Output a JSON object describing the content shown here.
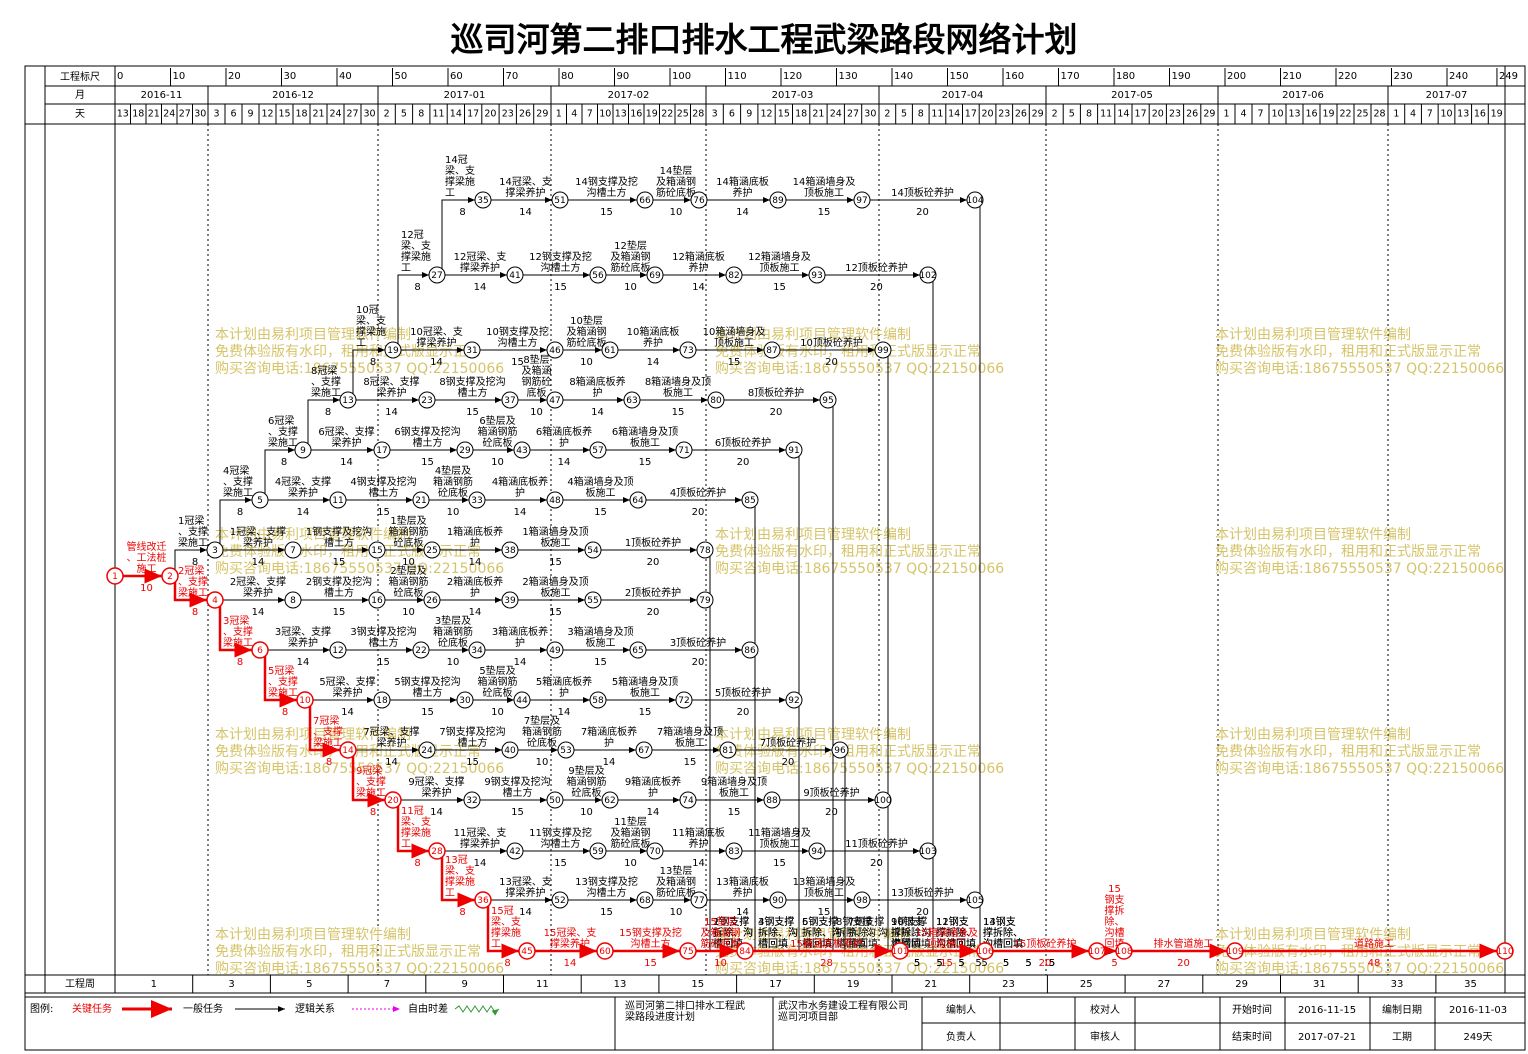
{
  "title": "巡司河第二排口排水工程武梁路段网络计划",
  "header": {
    "scale_label": "工程标尺",
    "scale_ticks": [
      0,
      10,
      20,
      30,
      40,
      50,
      60,
      70,
      80,
      90,
      100,
      110,
      120,
      130,
      140,
      150,
      160,
      170,
      180,
      190,
      200,
      210,
      220,
      230,
      240,
      249
    ],
    "month_label": "月",
    "months": [
      "2016-11",
      "2016-12",
      "2017-01",
      "2017-02",
      "2017-03",
      "2017-04",
      "2017-05",
      "2017-06",
      "2017-07"
    ],
    "day_label": "天",
    "days": [
      [
        13,
        18,
        21,
        24,
        27,
        30
      ],
      [
        3,
        6,
        9,
        12,
        15,
        18,
        21,
        24,
        27,
        30
      ],
      [
        2,
        5,
        8,
        11,
        14,
        17,
        20,
        23,
        26,
        29
      ],
      [
        1,
        4,
        7,
        10,
        13,
        16,
        19,
        22,
        25,
        28
      ],
      [
        3,
        6,
        9,
        12,
        15,
        18,
        21,
        24,
        27,
        30
      ],
      [
        2,
        5,
        8,
        11,
        14,
        17,
        20,
        23,
        26,
        29
      ],
      [
        2,
        5,
        8,
        11,
        14,
        17,
        20,
        23,
        26,
        29
      ],
      [
        1,
        4,
        7,
        10,
        13,
        16,
        19,
        22,
        25,
        28
      ],
      [
        1,
        4,
        7,
        10,
        13,
        16,
        19
      ]
    ]
  },
  "nodes": [
    35,
    51,
    66,
    76,
    89,
    97,
    104,
    27,
    41,
    56,
    69,
    82,
    93,
    102,
    19,
    31,
    46,
    61,
    73,
    87,
    99,
    13,
    23,
    37,
    47,
    63,
    80,
    95,
    9,
    17,
    29,
    43,
    57,
    71,
    91,
    5,
    11,
    21,
    33,
    48,
    64,
    85,
    3,
    7,
    15,
    25,
    38,
    54,
    78,
    4,
    8,
    16,
    26,
    39,
    55,
    79,
    6,
    12,
    22,
    34,
    49,
    65,
    86,
    10,
    18,
    30,
    44,
    58,
    72,
    92,
    14,
    24,
    40,
    53,
    67,
    81,
    96,
    20,
    32,
    50,
    62,
    74,
    88,
    100,
    28,
    42,
    59,
    70,
    83,
    94,
    103,
    36,
    52,
    68,
    77,
    90,
    98,
    105,
    45,
    60,
    75,
    84,
    101,
    106,
    107,
    108,
    109,
    110,
    1,
    2
  ],
  "tasks": [
    {
      "name": "管线改迁、工法桩施工",
      "duration": 10,
      "from": 1,
      "to": 2,
      "critical": true
    },
    {
      "name": "1冠梁、支撑梁施工",
      "duration": 8,
      "from": 2,
      "to": 3
    },
    {
      "name": "2冠梁、支撑梁施工",
      "duration": 8,
      "from": 2,
      "to": 4,
      "critical": true
    },
    {
      "name": "3冠梁、支撑梁施工",
      "duration": 8,
      "from": 4,
      "to": 6,
      "critical": true
    },
    {
      "name": "5冠梁、支撑梁施工",
      "duration": 8,
      "from": 6,
      "to": 10,
      "critical": true
    },
    {
      "name": "7冠梁、支撑梁施工",
      "duration": 8,
      "from": 10,
      "to": 14,
      "critical": true
    },
    {
      "name": "9冠梁、支撑梁施工",
      "duration": 8,
      "from": 14,
      "to": 20,
      "critical": true
    },
    {
      "name": "11冠梁、支撑梁施工",
      "duration": 8,
      "from": 20,
      "to": 28,
      "critical": true
    },
    {
      "name": "13冠梁、支撑梁施工",
      "duration": 8,
      "from": 28,
      "to": 36,
      "critical": true
    },
    {
      "name": "15冠梁、支撑梁施工",
      "duration": 8,
      "from": 36,
      "to": 45,
      "critical": true
    },
    {
      "name": "4冠梁、支撑梁施工",
      "duration": 8,
      "from": 3,
      "to": 5
    },
    {
      "name": "6冠梁、支撑梁施工",
      "duration": 8,
      "from": 5,
      "to": 9
    },
    {
      "name": "8冠梁、支撑梁施工",
      "duration": 8,
      "from": 9,
      "to": 13
    },
    {
      "name": "10冠梁、支撑梁施工",
      "duration": 8,
      "from": 13,
      "to": 19
    },
    {
      "name": "12冠梁、支撑梁施工",
      "duration": 8,
      "from": 19,
      "to": 27
    },
    {
      "name": "14冠梁、支撑梁施工",
      "duration": 8,
      "from": 27,
      "to": 35
    },
    {
      "name": "14冠梁、支撑梁养护",
      "duration": 14,
      "from": 35,
      "to": 51
    },
    {
      "name": "14钢支撑及挖沟槽土方",
      "duration": 15,
      "from": 51,
      "to": 66
    },
    {
      "name": "14垫层及箱涵钢筋砼底板",
      "duration": 10,
      "from": 66,
      "to": 76
    },
    {
      "name": "14箱涵底板养护",
      "duration": 14,
      "from": 76,
      "to": 89
    },
    {
      "name": "14箱涵墙身及顶板施工",
      "duration": 15,
      "from": 89,
      "to": 97
    },
    {
      "name": "14顶板砼养护",
      "duration": 20,
      "from": 97,
      "to": 104
    },
    {
      "name": "14钢支撑拆除、沟槽回填",
      "duration": 5,
      "from": 104,
      "to": 108
    },
    {
      "name": "12冠梁、支撑梁养护",
      "duration": 14,
      "from": 27,
      "to": 41
    },
    {
      "name": "12钢支撑及挖沟槽土方",
      "duration": 15,
      "from": 41,
      "to": 56
    },
    {
      "name": "12垫层及箱涵钢筋砼底板",
      "duration": 10,
      "from": 56,
      "to": 69
    },
    {
      "name": "12箱涵底板养护",
      "duration": 14,
      "from": 69,
      "to": 82
    },
    {
      "name": "12箱涵墙身及顶板施工",
      "duration": 15,
      "from": 82,
      "to": 93
    },
    {
      "name": "12顶板砼养护",
      "duration": 20,
      "from": 93,
      "to": 102
    },
    {
      "name": "12钢支撑拆除、沟槽回填",
      "duration": 5,
      "from": 102,
      "to": 108
    },
    {
      "name": "10冠梁、支撑梁养护",
      "duration": 14,
      "from": 19,
      "to": 31
    },
    {
      "name": "10钢支撑及挖沟槽土方",
      "duration": 15,
      "from": 31,
      "to": 46
    },
    {
      "name": "10垫层及箱涵钢筋砼底板",
      "duration": 10,
      "from": 46,
      "to": 61
    },
    {
      "name": "10箱涵底板养护",
      "duration": 14,
      "from": 61,
      "to": 73
    },
    {
      "name": "10箱涵墙身及顶板施工",
      "duration": 15,
      "from": 73,
      "to": 87
    },
    {
      "name": "10顶板砼养护",
      "duration": 20,
      "from": 87,
      "to": 99
    },
    {
      "name": "10钢支撑拆除、沟槽回填",
      "duration": 5,
      "from": 99,
      "to": 108
    },
    {
      "name": "8冠梁、支撑梁养护",
      "duration": 14,
      "from": 13,
      "to": 23
    },
    {
      "name": "8钢支撑及挖沟槽土方",
      "duration": 15,
      "from": 23,
      "to": 37
    },
    {
      "name": "8垫层及箱涵钢筋砼底板",
      "duration": 10,
      "from": 37,
      "to": 47
    },
    {
      "name": "8箱涵底板养护",
      "duration": 14,
      "from": 47,
      "to": 63
    },
    {
      "name": "8箱涵墙身及顶板施工",
      "duration": 15,
      "from": 63,
      "to": 80
    },
    {
      "name": "8顶板砼养护",
      "duration": 20,
      "from": 80,
      "to": 95
    },
    {
      "name": "8钢支撑拆除、沟槽回填",
      "duration": 5,
      "from": 95,
      "to": 108
    },
    {
      "name": "6冠梁、支撑梁养护",
      "duration": 14,
      "from": 9,
      "to": 17
    },
    {
      "name": "6钢支撑及挖沟槽土方",
      "duration": 15,
      "from": 17,
      "to": 29
    },
    {
      "name": "6垫层及箱涵钢筋砼底板",
      "duration": 10,
      "from": 29,
      "to": 43
    },
    {
      "name": "6箱涵底板养护",
      "duration": 14,
      "from": 43,
      "to": 57
    },
    {
      "name": "6箱涵墙身及顶板施工",
      "duration": 15,
      "from": 57,
      "to": 71
    },
    {
      "name": "6顶板砼养护",
      "duration": 20,
      "from": 71,
      "to": 91
    },
    {
      "name": "6钢支撑拆除、沟槽回填",
      "duration": 5,
      "from": 91,
      "to": 108
    },
    {
      "name": "4冠梁、支撑梁养护",
      "duration": 14,
      "from": 5,
      "to": 11
    },
    {
      "name": "4钢支撑及挖沟槽土方",
      "duration": 15,
      "from": 11,
      "to": 21
    },
    {
      "name": "4垫层及箱涵钢筋砼底板",
      "duration": 10,
      "from": 21,
      "to": 33
    },
    {
      "name": "4箱涵底板养护",
      "duration": 14,
      "from": 33,
      "to": 48
    },
    {
      "name": "4箱涵墙身及顶板施工",
      "duration": 15,
      "from": 48,
      "to": 64
    },
    {
      "name": "4顶板砼养护",
      "duration": 20,
      "from": 64,
      "to": 85
    },
    {
      "name": "4钢支撑拆除、沟槽回填",
      "duration": 5,
      "from": 85,
      "to": 108
    },
    {
      "name": "1冠梁、支撑梁养护",
      "duration": 14,
      "from": 3,
      "to": 7
    },
    {
      "name": "1钢支撑及挖沟槽土方",
      "duration": 15,
      "from": 7,
      "to": 15
    },
    {
      "name": "1垫层及箱涵钢筋砼底板",
      "duration": 10,
      "from": 15,
      "to": 25
    },
    {
      "name": "1箱涵底板养护",
      "duration": 14,
      "from": 25,
      "to": 38
    },
    {
      "name": "1箱涵墙身及顶板施工",
      "duration": 15,
      "from": 38,
      "to": 54
    },
    {
      "name": "1顶板砼养护",
      "duration": 20,
      "from": 54,
      "to": 78
    },
    {
      "name": "1钢支撑拆除、沟槽回填",
      "duration": 5,
      "from": 78,
      "to": 108
    },
    {
      "name": "2冠梁、支撑梁养护",
      "duration": 14,
      "from": 4,
      "to": 8
    },
    {
      "name": "2钢支撑及挖沟槽土方",
      "duration": 15,
      "from": 8,
      "to": 16
    },
    {
      "name": "2垫层及箱涵钢筋砼底板",
      "duration": 10,
      "from": 16,
      "to": 26
    },
    {
      "name": "2箱涵底板养护",
      "duration": 14,
      "from": 26,
      "to": 39
    },
    {
      "name": "2箱涵墙身及顶板施工",
      "duration": 15,
      "from": 39,
      "to": 55
    },
    {
      "name": "2顶板砼养护",
      "duration": 20,
      "from": 55,
      "to": 79
    },
    {
      "name": "2钢支撑拆除、沟槽回填",
      "duration": 5,
      "from": 79,
      "to": 108
    },
    {
      "name": "3冠梁、支撑梁养护",
      "duration": 14,
      "from": 6,
      "to": 12
    },
    {
      "name": "3钢支撑及挖沟槽土方",
      "duration": 15,
      "from": 12,
      "to": 22
    },
    {
      "name": "3垫层及箱涵钢筋砼底板",
      "duration": 10,
      "from": 22,
      "to": 34
    },
    {
      "name": "3箱涵底板养护",
      "duration": 14,
      "from": 34,
      "to": 49
    },
    {
      "name": "3箱涵墙身及顶板施工",
      "duration": 15,
      "from": 49,
      "to": 65
    },
    {
      "name": "3顶板砼养护",
      "duration": 20,
      "from": 65,
      "to": 86
    },
    {
      "name": "3钢支撑拆除、沟槽回填",
      "duration": 5,
      "from": 86,
      "to": 108
    },
    {
      "name": "5冠梁、支撑梁养护",
      "duration": 14,
      "from": 10,
      "to": 18
    },
    {
      "name": "5钢支撑及挖沟槽土方",
      "duration": 15,
      "from": 18,
      "to": 30
    },
    {
      "name": "5垫层及箱涵钢筋砼底板",
      "duration": 10,
      "from": 30,
      "to": 44
    },
    {
      "name": "5箱涵底板养护",
      "duration": 14,
      "from": 44,
      "to": 58
    },
    {
      "name": "5箱涵墙身及顶板施工",
      "duration": 15,
      "from": 58,
      "to": 72
    },
    {
      "name": "5顶板砼养护",
      "duration": 20,
      "from": 72,
      "to": 92
    },
    {
      "name": "5钢支撑拆除、沟槽回填",
      "duration": 5,
      "from": 92,
      "to": 108
    },
    {
      "name": "7冠梁、支撑梁养护",
      "duration": 14,
      "from": 14,
      "to": 24
    },
    {
      "name": "7钢支撑及挖沟槽土方",
      "duration": 15,
      "from": 24,
      "to": 40
    },
    {
      "name": "7垫层及箱涵钢筋砼底板",
      "duration": 10,
      "from": 40,
      "to": 53
    },
    {
      "name": "7箱涵底板养护",
      "duration": 14,
      "from": 53,
      "to": 67
    },
    {
      "name": "7箱涵墙身及顶板施工",
      "duration": 15,
      "from": 67,
      "to": 81
    },
    {
      "name": "7顶板砼养护",
      "duration": 20,
      "from": 81,
      "to": 96
    },
    {
      "name": "7钢支撑拆除、沟槽回填",
      "duration": 5,
      "from": 96,
      "to": 108
    },
    {
      "name": "9冠梁、支撑梁养护",
      "duration": 14,
      "from": 20,
      "to": 32
    },
    {
      "name": "9钢支撑及挖沟槽土方",
      "duration": 15,
      "from": 32,
      "to": 50
    },
    {
      "name": "9垫层及箱涵钢筋砼底板",
      "duration": 10,
      "from": 50,
      "to": 62
    },
    {
      "name": "9箱涵底板养护",
      "duration": 14,
      "from": 62,
      "to": 74
    },
    {
      "name": "9箱涵墙身及顶板施工",
      "duration": 15,
      "from": 74,
      "to": 88
    },
    {
      "name": "9顶板砼养护",
      "duration": 20,
      "from": 88,
      "to": 100
    },
    {
      "name": "9钢支撑拆除、沟槽回填",
      "duration": 5,
      "from": 100,
      "to": 108
    },
    {
      "name": "11冠梁、支撑梁养护",
      "duration": 14,
      "from": 28,
      "to": 42
    },
    {
      "name": "11钢支撑及挖沟槽土方",
      "duration": 15,
      "from": 42,
      "to": 59
    },
    {
      "name": "11垫层及箱涵钢筋砼底板",
      "duration": 10,
      "from": 59,
      "to": 70
    },
    {
      "name": "11箱涵底板养护",
      "duration": 14,
      "from": 70,
      "to": 83
    },
    {
      "name": "11箱涵墙身及顶板施工",
      "duration": 15,
      "from": 83,
      "to": 94
    },
    {
      "name": "11顶板砼养护",
      "duration": 20,
      "from": 94,
      "to": 103
    },
    {
      "name": "11钢支撑拆除、沟槽回填",
      "duration": 5,
      "from": 103,
      "to": 108
    },
    {
      "name": "13冠梁、支撑梁养护",
      "duration": 14,
      "from": 36,
      "to": 52
    },
    {
      "name": "13钢支撑及挖沟槽土方",
      "duration": 15,
      "from": 52,
      "to": 68
    },
    {
      "name": "13垫层及箱涵钢筋砼底板",
      "duration": 10,
      "from": 68,
      "to": 77
    },
    {
      "name": "13箱涵底板养护",
      "duration": 14,
      "from": 77,
      "to": 90
    },
    {
      "name": "13箱涵墙身及顶板施工",
      "duration": 15,
      "from": 90,
      "to": 98
    },
    {
      "name": "13顶板砼养护",
      "duration": 20,
      "from": 98,
      "to": 105
    },
    {
      "name": "13钢支撑拆除、沟槽回填",
      "duration": 5,
      "from": 105,
      "to": 108
    },
    {
      "name": "15冠梁、支撑梁养护",
      "duration": 14,
      "from": 45,
      "to": 60,
      "critical": true
    },
    {
      "name": "15钢支撑及挖沟槽土方",
      "duration": 15,
      "from": 60,
      "to": 75,
      "critical": true
    },
    {
      "name": "15垫层及箱涵钢筋砼底板",
      "duration": 10,
      "from": 75,
      "to": 84,
      "critical": true
    },
    {
      "name": "15箱涵底板养护",
      "duration": 28,
      "from": 84,
      "to": 101,
      "critical": true
    },
    {
      "name": "15箱涵墙身及顶板施工",
      "duration": 15,
      "from": 101,
      "to": 106,
      "critical": true
    },
    {
      "name": "15顶板砼养护",
      "duration": 20,
      "from": 106,
      "to": 107,
      "critical": true
    },
    {
      "name": "15钢支撑拆除、沟槽回填",
      "duration": 5,
      "from": 107,
      "to": 108,
      "critical": true
    },
    {
      "name": "排水管道施工",
      "duration": 20,
      "from": 108,
      "to": 109,
      "critical": true
    },
    {
      "name": "道路施工",
      "duration": 48,
      "from": 109,
      "to": 110,
      "critical": true
    }
  ],
  "week_label": "工程周",
  "weeks": [
    1,
    3,
    5,
    7,
    9,
    11,
    13,
    15,
    17,
    19,
    21,
    23,
    25,
    27,
    29,
    31,
    33,
    35
  ],
  "watermark": [
    "本计划由易利项目管理软件编制",
    "免费体验版有水印，租用和正式版显示正常",
    "购买咨询电话:18675550537 QQ:22150066"
  ],
  "legend": {
    "title": "图例:",
    "items": [
      "关键任务",
      "一般任务",
      "逻辑关系",
      "自由时差"
    ]
  },
  "footer": {
    "project": "巡司河第二排口排水工程武梁路段进度计划",
    "company": "武汉市水务建设工程有限公司巡司河项目部",
    "compiler": "编制人",
    "supervisor": "负责人",
    "checker": "校对人",
    "reviewer": "审核人",
    "start_label": "开始时间",
    "start": "2016-11-15",
    "compile_date_label": "编制日期",
    "compile_date": "2016-11-03",
    "end_label": "结束时间",
    "end": "2017-07-21",
    "duration_label": "工期",
    "duration": "249天"
  }
}
